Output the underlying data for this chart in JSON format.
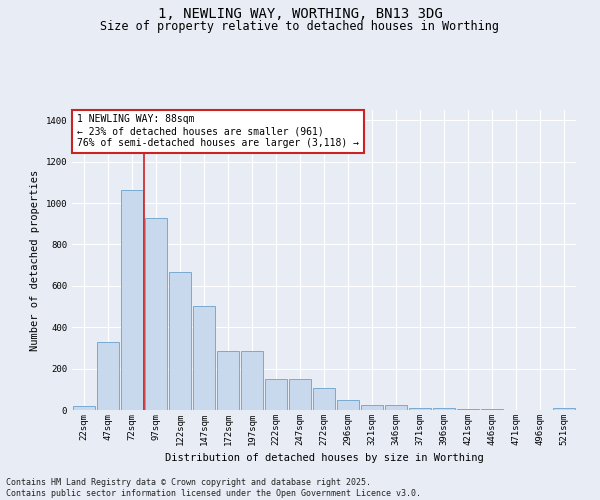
{
  "title": "1, NEWLING WAY, WORTHING, BN13 3DG",
  "subtitle": "Size of property relative to detached houses in Worthing",
  "xlabel": "Distribution of detached houses by size in Worthing",
  "ylabel": "Number of detached properties",
  "categories": [
    "22sqm",
    "47sqm",
    "72sqm",
    "97sqm",
    "122sqm",
    "147sqm",
    "172sqm",
    "197sqm",
    "222sqm",
    "247sqm",
    "272sqm",
    "296sqm",
    "321sqm",
    "346sqm",
    "371sqm",
    "396sqm",
    "421sqm",
    "446sqm",
    "471sqm",
    "496sqm",
    "521sqm"
  ],
  "values": [
    18,
    330,
    1065,
    930,
    665,
    505,
    285,
    285,
    150,
    150,
    105,
    48,
    22,
    22,
    10,
    10,
    5,
    5,
    2,
    2,
    8
  ],
  "bar_color": "#c8d9ee",
  "bar_edge_color": "#7aaad0",
  "bg_color": "#e8edf5",
  "grid_color": "#ffffff",
  "vline_color": "#cc2222",
  "vline_x": 2.5,
  "annotation_text": "1 NEWLING WAY: 88sqm\n← 23% of detached houses are smaller (961)\n76% of semi-detached houses are larger (3,118) →",
  "annotation_box_facecolor": "#ffffff",
  "annotation_box_edgecolor": "#cc2222",
  "ylim": [
    0,
    1450
  ],
  "yticks": [
    0,
    200,
    400,
    600,
    800,
    1000,
    1200,
    1400
  ],
  "footer": "Contains HM Land Registry data © Crown copyright and database right 2025.\nContains public sector information licensed under the Open Government Licence v3.0.",
  "title_fontsize": 10,
  "subtitle_fontsize": 8.5,
  "axis_label_fontsize": 7.5,
  "tick_fontsize": 6.5,
  "annotation_fontsize": 7,
  "footer_fontsize": 6
}
